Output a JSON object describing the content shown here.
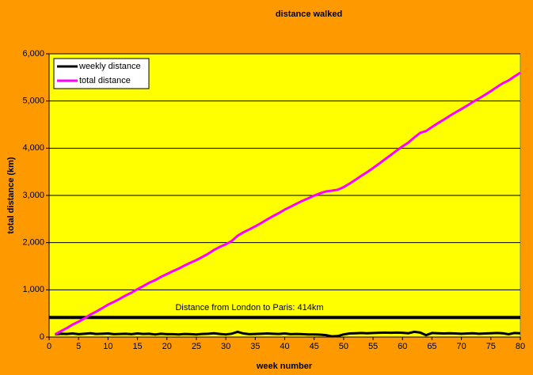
{
  "chart_data": {
    "type": "line",
    "title": "distance walked",
    "x_label": "week number",
    "y_label": "total distance (km)",
    "x": [
      1,
      2,
      3,
      4,
      5,
      6,
      7,
      8,
      9,
      10,
      11,
      12,
      13,
      14,
      15,
      16,
      17,
      18,
      19,
      20,
      21,
      22,
      23,
      24,
      25,
      26,
      27,
      28,
      29,
      30,
      31,
      32,
      33,
      34,
      35,
      36,
      37,
      38,
      39,
      40,
      41,
      42,
      43,
      44,
      45,
      46,
      47,
      48,
      49,
      50,
      51,
      52,
      53,
      54,
      55,
      56,
      57,
      58,
      59,
      60,
      61,
      62,
      63,
      64,
      65,
      66,
      67,
      68,
      69,
      70,
      71,
      72,
      73,
      74,
      75,
      76,
      77,
      78,
      79,
      80
    ],
    "series": [
      {
        "name": "weekly distance",
        "color": "#000000",
        "values": [
          55,
          70,
          65,
          75,
          60,
          70,
          80,
          65,
          70,
          75,
          60,
          65,
          70,
          60,
          75,
          65,
          70,
          55,
          70,
          60,
          60,
          55,
          65,
          60,
          55,
          65,
          70,
          80,
          65,
          55,
          70,
          110,
          75,
          60,
          65,
          70,
          75,
          70,
          65,
          75,
          60,
          65,
          60,
          55,
          55,
          50,
          40,
          15,
          20,
          55,
          75,
          80,
          85,
          80,
          85,
          90,
          95,
          90,
          95,
          90,
          80,
          110,
          95,
          40,
          85,
          80,
          75,
          80,
          75,
          70,
          75,
          80,
          70,
          75,
          80,
          85,
          80,
          60,
          85,
          80
        ]
      },
      {
        "name": "total distance",
        "color": "#ff00ff",
        "values": [
          55,
          125,
          190,
          265,
          325,
          395,
          475,
          540,
          610,
          685,
          745,
          810,
          880,
          940,
          1015,
          1080,
          1150,
          1205,
          1275,
          1335,
          1395,
          1450,
          1515,
          1575,
          1630,
          1695,
          1765,
          1845,
          1910,
          1965,
          2035,
          2145,
          2220,
          2280,
          2345,
          2415,
          2490,
          2560,
          2625,
          2700,
          2760,
          2825,
          2885,
          2940,
          2995,
          3045,
          3085,
          3100,
          3120,
          3175,
          3250,
          3330,
          3415,
          3495,
          3580,
          3670,
          3765,
          3855,
          3950,
          4040,
          4120,
          4230,
          4325,
          4365,
          4450,
          4530,
          4605,
          4685,
          4760,
          4830,
          4905,
          4985,
          5055,
          5130,
          5210,
          5295,
          5375,
          5435,
          5520,
          5600
        ]
      }
    ],
    "reference_line": {
      "value": 414,
      "label": "Distance from London to  Paris: 414km"
    },
    "xlim": [
      0,
      80
    ],
    "xticks": [
      0,
      5,
      10,
      15,
      20,
      25,
      30,
      35,
      40,
      45,
      50,
      55,
      60,
      65,
      70,
      75,
      80
    ],
    "ylim": [
      0,
      6000
    ],
    "yticks": [
      0,
      {
        "value": 1000,
        "label": "1,000"
      },
      {
        "value": 2000,
        "label": "2,000"
      },
      {
        "value": 3000,
        "label": "3,000"
      },
      {
        "value": 4000,
        "label": "4,000"
      },
      {
        "value": 5000,
        "label": "5,000"
      },
      {
        "value": 6000,
        "label": "6,000"
      }
    ],
    "grid": true,
    "legend": "top-left"
  }
}
